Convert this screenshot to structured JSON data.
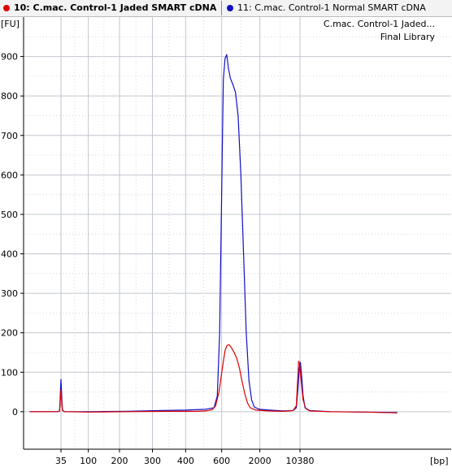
{
  "tabs": [
    {
      "label": "10: C.mac. Control-1 Jaded SMART cDNA",
      "color": "#e00000",
      "active": true
    },
    {
      "label": "11: C.mac. Control-1 Normal SMART cDNA",
      "color": "#1010c8",
      "active": false
    }
  ],
  "annotations": {
    "line1": "C.mac. Control-1 Jaded...",
    "line2": "Final Library"
  },
  "chart_data": {
    "type": "line",
    "ylabel": "[FU]",
    "xlabel": "[bp]",
    "ylim": [
      -95,
      1000
    ],
    "yticks": [
      0,
      100,
      200,
      300,
      400,
      500,
      600,
      700,
      800,
      900
    ],
    "xticks": [
      {
        "label": "35",
        "t": 0.0
      },
      {
        "label": "100",
        "t": 0.0813
      },
      {
        "label": "200",
        "t": 0.1741
      },
      {
        "label": "300",
        "t": 0.272
      },
      {
        "label": "400",
        "t": 0.3708
      },
      {
        "label": "600",
        "t": 0.4779
      },
      {
        "label": "2000",
        "t": 0.5915
      },
      {
        "label": "10380",
        "t": 0.7109
      }
    ],
    "x_units": "migration position between the 35 bp and 10380 bp markers (0 = 35 bp, 0.7109 = 10380 bp)",
    "grid": true,
    "series": [
      {
        "name": "11: C.mac. Control-1 Normal SMART cDNA",
        "color": "#1010c8",
        "points": [
          [
            -0.093,
            0
          ],
          [
            -0.01,
            0
          ],
          [
            -0.004,
            2
          ],
          [
            0.0,
            82
          ],
          [
            0.004,
            5
          ],
          [
            0.01,
            0
          ],
          [
            0.08,
            0
          ],
          [
            0.2,
            1
          ],
          [
            0.3,
            3
          ],
          [
            0.37,
            4
          ],
          [
            0.43,
            6
          ],
          [
            0.455,
            10
          ],
          [
            0.465,
            40
          ],
          [
            0.472,
            200
          ],
          [
            0.478,
            560
          ],
          [
            0.483,
            840
          ],
          [
            0.488,
            895
          ],
          [
            0.493,
            905
          ],
          [
            0.498,
            870
          ],
          [
            0.504,
            845
          ],
          [
            0.511,
            830
          ],
          [
            0.519,
            810
          ],
          [
            0.527,
            750
          ],
          [
            0.535,
            600
          ],
          [
            0.543,
            400
          ],
          [
            0.551,
            200
          ],
          [
            0.559,
            80
          ],
          [
            0.567,
            30
          ],
          [
            0.575,
            12
          ],
          [
            0.59,
            6
          ],
          [
            0.62,
            4
          ],
          [
            0.66,
            2
          ],
          [
            0.69,
            3
          ],
          [
            0.7,
            10
          ],
          [
            0.705,
            60
          ],
          [
            0.709,
            110
          ],
          [
            0.712,
            125
          ],
          [
            0.716,
            90
          ],
          [
            0.72,
            40
          ],
          [
            0.726,
            10
          ],
          [
            0.74,
            3
          ],
          [
            0.8,
            0
          ],
          [
            0.9,
            -1
          ],
          [
            1.0,
            -2
          ]
        ]
      },
      {
        "name": "10: C.mac. Control-1 Jaded SMART cDNA",
        "color": "#e00000",
        "points": [
          [
            -0.093,
            0
          ],
          [
            -0.01,
            0
          ],
          [
            -0.004,
            2
          ],
          [
            0.0,
            55
          ],
          [
            0.004,
            4
          ],
          [
            0.01,
            0
          ],
          [
            0.08,
            -1
          ],
          [
            0.2,
            0
          ],
          [
            0.3,
            1
          ],
          [
            0.4,
            1
          ],
          [
            0.43,
            2
          ],
          [
            0.45,
            5
          ],
          [
            0.46,
            15
          ],
          [
            0.47,
            50
          ],
          [
            0.48,
            110
          ],
          [
            0.488,
            155
          ],
          [
            0.494,
            168
          ],
          [
            0.5,
            170
          ],
          [
            0.507,
            162
          ],
          [
            0.515,
            150
          ],
          [
            0.523,
            135
          ],
          [
            0.531,
            110
          ],
          [
            0.539,
            75
          ],
          [
            0.547,
            45
          ],
          [
            0.555,
            22
          ],
          [
            0.563,
            10
          ],
          [
            0.58,
            4
          ],
          [
            0.62,
            2
          ],
          [
            0.66,
            1
          ],
          [
            0.69,
            3
          ],
          [
            0.7,
            15
          ],
          [
            0.704,
            80
          ],
          [
            0.707,
            128
          ],
          [
            0.71,
            120
          ],
          [
            0.714,
            80
          ],
          [
            0.72,
            30
          ],
          [
            0.728,
            8
          ],
          [
            0.74,
            2
          ],
          [
            0.8,
            0
          ],
          [
            0.9,
            -1
          ],
          [
            1.0,
            -3
          ]
        ]
      }
    ]
  }
}
